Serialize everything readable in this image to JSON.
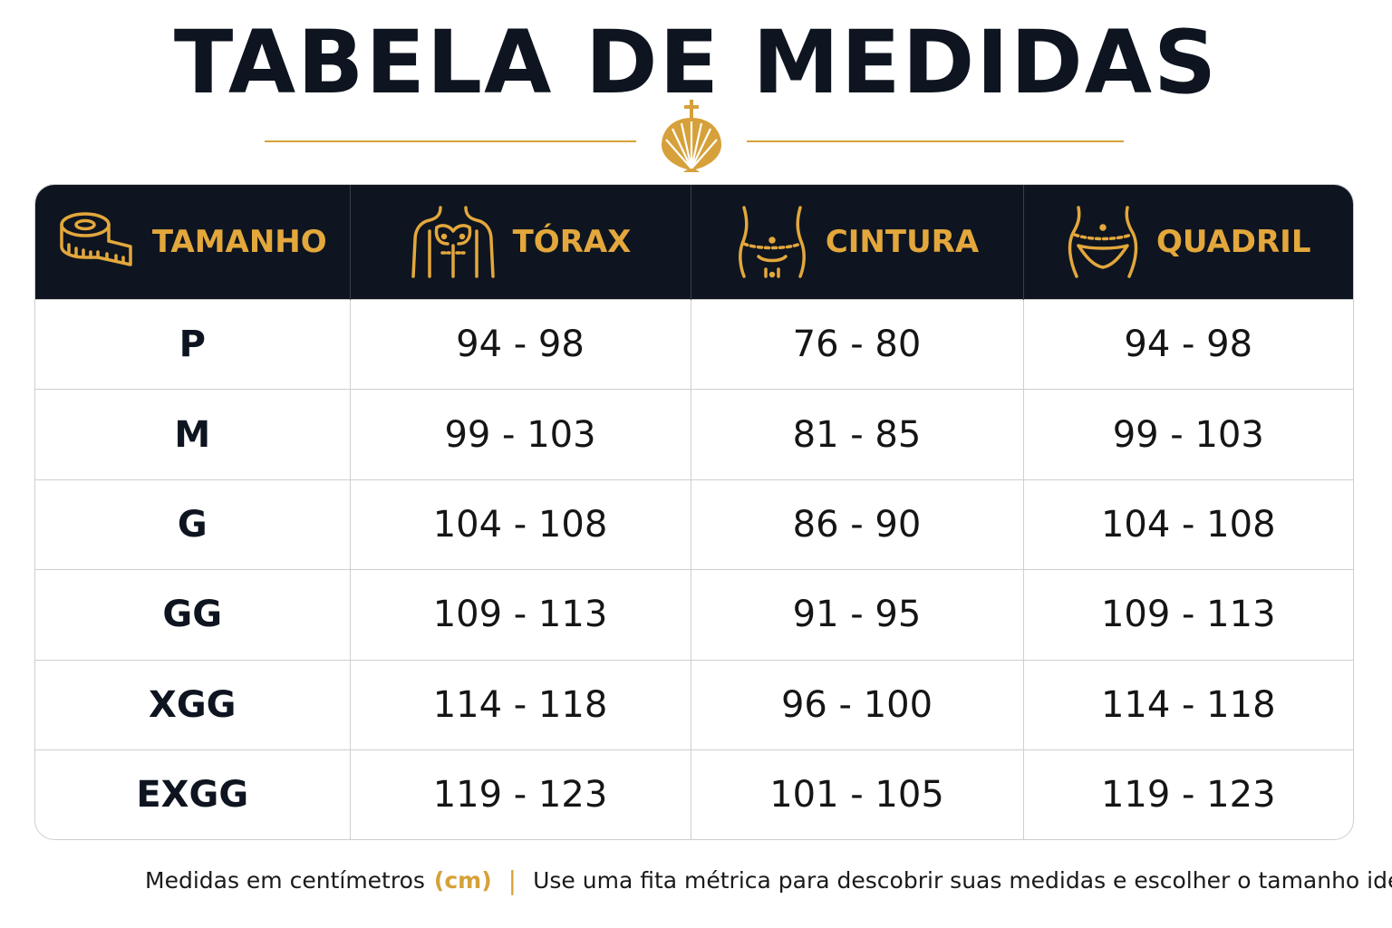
{
  "title": "TABELA DE MEDIDAS",
  "colors": {
    "gold": "#d6a13a",
    "header_bg": "#0e1520"
  },
  "table": {
    "headers": [
      {
        "label": "TAMANHO",
        "icon": "tape-measure-icon"
      },
      {
        "label": "TÓRAX",
        "icon": "chest-icon"
      },
      {
        "label": "CINTURA",
        "icon": "waist-icon"
      },
      {
        "label": "QUADRIL",
        "icon": "hip-icon"
      }
    ],
    "rows": [
      [
        "P",
        "94 - 98",
        "76 - 80",
        "94 - 98"
      ],
      [
        "M",
        "99 - 103",
        "81 - 85",
        "99 - 103"
      ],
      [
        "G",
        "104 - 108",
        "86 - 90",
        "104 - 108"
      ],
      [
        "GG",
        "109 - 113",
        "91 - 95",
        "109 - 113"
      ],
      [
        "XGG",
        "114 - 118",
        "96 - 100",
        "114 - 118"
      ],
      [
        "EXGG",
        "119 - 123",
        "101 - 105",
        "119 - 123"
      ]
    ]
  },
  "footer": {
    "text": "Medidas em centímetros",
    "unit": "(cm)",
    "separator": "|",
    "tip": "Use uma fita métrica para descobrir suas medidas e escolher o tamanho ideal."
  }
}
